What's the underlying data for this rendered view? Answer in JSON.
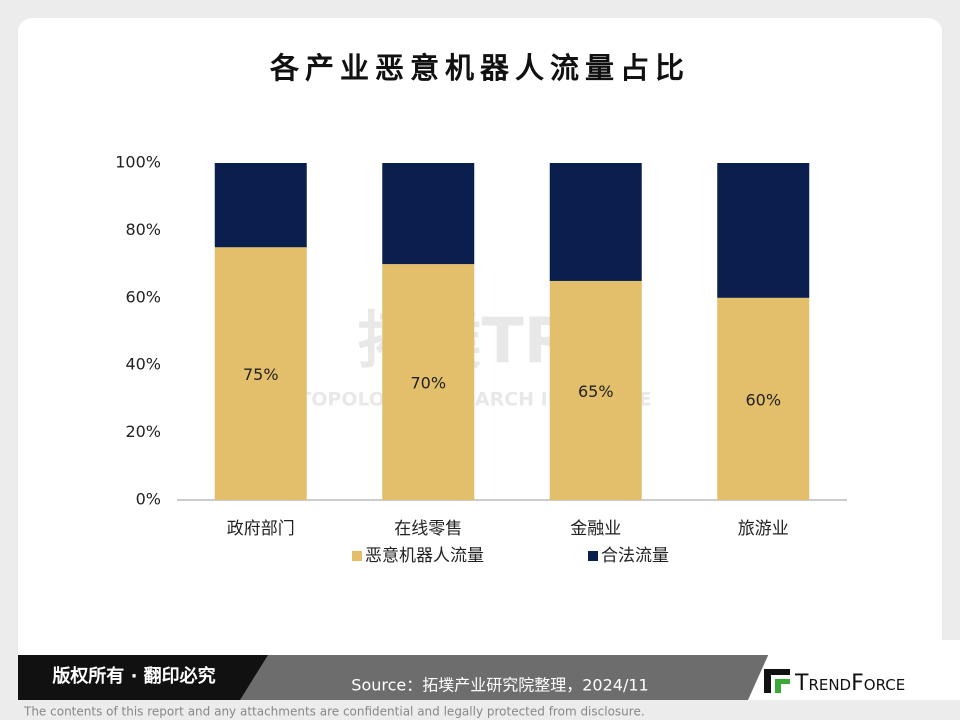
{
  "chart_data": {
    "type": "stacked-bar",
    "title": "各产业恶意机器人流量占比",
    "categories": [
      "政府部门",
      "在线零售",
      "金融业",
      "旅游业"
    ],
    "series": [
      {
        "name": "恶意机器人流量",
        "color": "#e3bf6b",
        "values": [
          75,
          70,
          65,
          60
        ],
        "value_labels": [
          "75%",
          "70%",
          "65%",
          "60%"
        ]
      },
      {
        "name": "合法流量",
        "color": "#0a1f4e",
        "values": [
          25,
          30,
          35,
          40
        ]
      }
    ],
    "ylim": [
      0,
      100
    ],
    "yticks": [
      {
        "value": 0,
        "label": "0%"
      },
      {
        "value": 20,
        "label": "20%"
      },
      {
        "value": 40,
        "label": "40%"
      },
      {
        "value": 60,
        "label": "60%"
      },
      {
        "value": 80,
        "label": "80%"
      },
      {
        "value": 100,
        "label": "100%"
      }
    ],
    "grid": false,
    "legend": "bottom"
  },
  "watermark": {
    "logo": "拓墣TRi",
    "text": "TOPOLOGY RESEARCH INSTITUTE"
  },
  "footer": {
    "copyright": "版权所有 · 翻印必究",
    "source": "Source：拓墣产业研究院整理，2024/11",
    "logo": "TrendForce",
    "disclaimer": "The contents of this report and any attachments are confidential and legally protected from disclosure."
  }
}
